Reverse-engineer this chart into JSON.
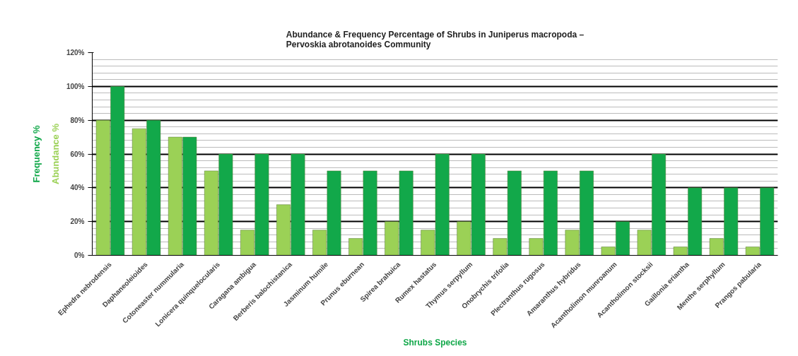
{
  "chart_data": {
    "type": "bar",
    "title": "Abundance & Frequency Percentage of Shrubs in Juniperus macropoda –\nPervoskia abrotanoides  Community",
    "xlabel": "Shrubs Species",
    "categories": [
      "Ephedra nebrodensis",
      "Daphaneoleioides",
      "Cotoneaster nummularia",
      "Lonicera quinquelocularis",
      "Caragana ambigua",
      "Berberis balochistanica",
      "Jasminum humile",
      "Prunus eburnean",
      "Spirea brahuica",
      "Rumex hastatus",
      "Thymus serpyllum",
      "Onobrychis trifolia",
      "Plectranthus rugosus",
      "Amaranthus hybridus",
      "Acantholimon munroanum",
      "Acantholimon stocksii",
      "Gaillonia eriantha",
      "Menthe serphyllum",
      "Prangos pabularia"
    ],
    "series": [
      {
        "name": "Abundance %",
        "color": "#9bd156",
        "values": [
          80,
          75,
          70,
          50,
          15,
          30,
          15,
          10,
          20,
          15,
          20,
          10,
          10,
          15,
          5,
          15,
          5,
          10,
          5
        ]
      },
      {
        "name": "Frequency %",
        "color": "#12a84a",
        "values": [
          100,
          80,
          70,
          60,
          60,
          60,
          50,
          50,
          50,
          60,
          60,
          50,
          50,
          50,
          20,
          60,
          40,
          40,
          40
        ]
      }
    ],
    "ylim": [
      0,
      120
    ],
    "yticks": [
      {
        "value": 0,
        "label": "0%"
      },
      {
        "value": 20,
        "label": "20%"
      },
      {
        "value": 40,
        "label": "40%"
      },
      {
        "value": 60,
        "label": "60%"
      },
      {
        "value": 80,
        "label": "80%"
      },
      {
        "value": 100,
        "label": "100%"
      },
      {
        "value": 120,
        "label": "120%"
      }
    ],
    "grid": "y"
  }
}
